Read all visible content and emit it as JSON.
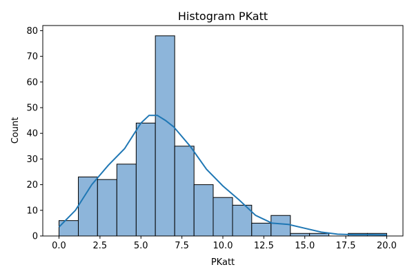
{
  "chart_data": {
    "type": "bar",
    "subtype": "histogram",
    "title": "Histogram PKatt",
    "xlabel": "PKatt",
    "ylabel": "Count",
    "xlim": [
      -0.99,
      20.99
    ],
    "ylim": [
      0,
      82
    ],
    "x_ticks": [
      "0.0",
      "2.5",
      "5.0",
      "7.5",
      "10.0",
      "12.5",
      "15.0",
      "17.5",
      "20.0"
    ],
    "y_ticks": [
      "0",
      "10",
      "20",
      "30",
      "40",
      "50",
      "60",
      "70",
      "80"
    ],
    "grid": false,
    "bins": [
      [
        0.0,
        1.18
      ],
      [
        1.18,
        2.35
      ],
      [
        2.35,
        3.53
      ],
      [
        3.53,
        4.71
      ],
      [
        4.71,
        5.88
      ],
      [
        5.88,
        7.06
      ],
      [
        7.06,
        8.24
      ],
      [
        8.24,
        9.41
      ],
      [
        9.41,
        10.59
      ],
      [
        10.59,
        11.76
      ],
      [
        11.76,
        12.94
      ],
      [
        12.94,
        14.12
      ],
      [
        14.12,
        15.29
      ],
      [
        15.29,
        16.47
      ],
      [
        16.47,
        17.65
      ],
      [
        17.65,
        18.82
      ],
      [
        18.82,
        20.0
      ]
    ],
    "values": [
      6,
      23,
      22,
      28,
      44,
      78,
      35,
      20,
      15,
      12,
      5,
      8,
      1,
      1,
      0,
      1,
      1
    ],
    "kde": {
      "x": [
        0,
        1,
        2,
        3,
        4,
        5,
        5.5,
        6,
        6.5,
        7,
        8,
        9,
        10,
        11,
        12,
        13,
        14,
        15,
        16,
        17,
        18,
        19,
        20
      ],
      "y": [
        3.5,
        10,
        20,
        27.5,
        34,
        44,
        47,
        47,
        45,
        42.5,
        35,
        26,
        19.5,
        14,
        8,
        5,
        4.5,
        3,
        1.5,
        0.7,
        0.5,
        0.5,
        0.4
      ]
    },
    "colors": {
      "bar_fill": "#8db5da",
      "bar_edge": "#000000",
      "kde_line": "#1f77b4"
    }
  }
}
